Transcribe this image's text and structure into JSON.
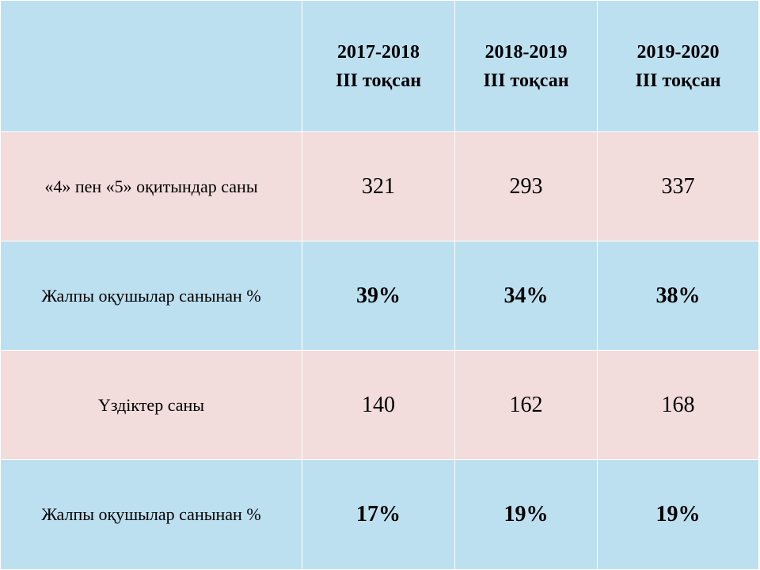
{
  "table": {
    "header": {
      "corner": "",
      "columns": [
        {
          "year": "2017-2018",
          "term": "III тоқсан"
        },
        {
          "year": "2018-2019",
          "term": "III тоқсан"
        },
        {
          "year": "2019-2020",
          "term": "III тоқсан"
        }
      ]
    },
    "rows": [
      {
        "label": "«4» пен «5» оқитындар саны",
        "values": [
          "321",
          "293",
          "337"
        ]
      },
      {
        "label": "Жалпы оқушылар санынан %",
        "values": [
          "39%",
          "34%",
          "38%"
        ]
      },
      {
        "label": "Үздіктер саны",
        "values": [
          "140",
          "162",
          "168"
        ]
      },
      {
        "label": "Жалпы оқушылар санынан %",
        "values": [
          "17%",
          "19%",
          "19%"
        ]
      }
    ]
  },
  "colors": {
    "blue_cell": "#bde0f0",
    "pink_cell": "#f2dcdc",
    "border": "#ffffff",
    "text": "#000000"
  }
}
